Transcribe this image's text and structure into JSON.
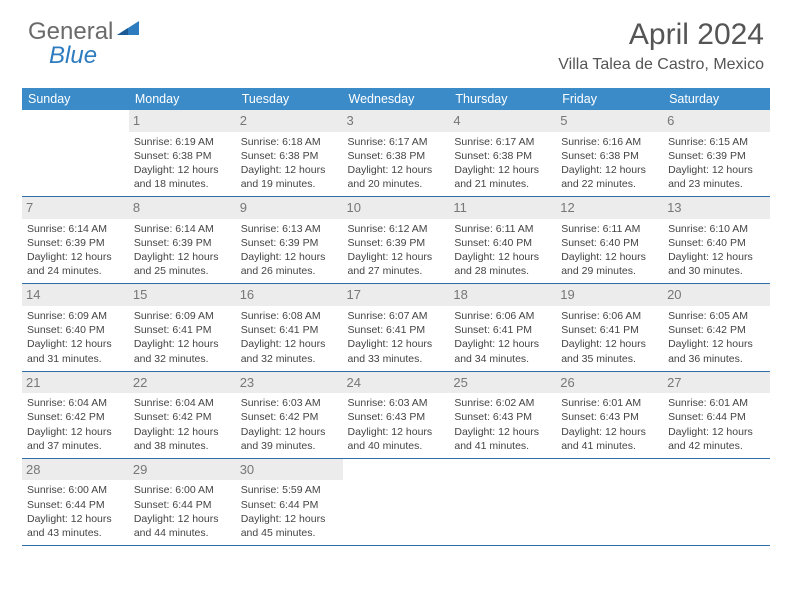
{
  "logo": {
    "part1": "General",
    "part2": "Blue"
  },
  "title": "April 2024",
  "location": "Villa Talea de Castro, Mexico",
  "colors": {
    "header_bg": "#3b8bc9",
    "row_border": "#2e6da8",
    "daynum_bg": "#ececec",
    "text": "#444444",
    "logo_gray": "#6a6a6a",
    "logo_blue": "#2e7cc0"
  },
  "weekdays": [
    "Sunday",
    "Monday",
    "Tuesday",
    "Wednesday",
    "Thursday",
    "Friday",
    "Saturday"
  ],
  "weeks": [
    [
      null,
      {
        "day": "1",
        "sunrise": "6:19 AM",
        "sunset": "6:38 PM",
        "daylight": "12 hours and 18 minutes."
      },
      {
        "day": "2",
        "sunrise": "6:18 AM",
        "sunset": "6:38 PM",
        "daylight": "12 hours and 19 minutes."
      },
      {
        "day": "3",
        "sunrise": "6:17 AM",
        "sunset": "6:38 PM",
        "daylight": "12 hours and 20 minutes."
      },
      {
        "day": "4",
        "sunrise": "6:17 AM",
        "sunset": "6:38 PM",
        "daylight": "12 hours and 21 minutes."
      },
      {
        "day": "5",
        "sunrise": "6:16 AM",
        "sunset": "6:38 PM",
        "daylight": "12 hours and 22 minutes."
      },
      {
        "day": "6",
        "sunrise": "6:15 AM",
        "sunset": "6:39 PM",
        "daylight": "12 hours and 23 minutes."
      }
    ],
    [
      {
        "day": "7",
        "sunrise": "6:14 AM",
        "sunset": "6:39 PM",
        "daylight": "12 hours and 24 minutes."
      },
      {
        "day": "8",
        "sunrise": "6:14 AM",
        "sunset": "6:39 PM",
        "daylight": "12 hours and 25 minutes."
      },
      {
        "day": "9",
        "sunrise": "6:13 AM",
        "sunset": "6:39 PM",
        "daylight": "12 hours and 26 minutes."
      },
      {
        "day": "10",
        "sunrise": "6:12 AM",
        "sunset": "6:39 PM",
        "daylight": "12 hours and 27 minutes."
      },
      {
        "day": "11",
        "sunrise": "6:11 AM",
        "sunset": "6:40 PM",
        "daylight": "12 hours and 28 minutes."
      },
      {
        "day": "12",
        "sunrise": "6:11 AM",
        "sunset": "6:40 PM",
        "daylight": "12 hours and 29 minutes."
      },
      {
        "day": "13",
        "sunrise": "6:10 AM",
        "sunset": "6:40 PM",
        "daylight": "12 hours and 30 minutes."
      }
    ],
    [
      {
        "day": "14",
        "sunrise": "6:09 AM",
        "sunset": "6:40 PM",
        "daylight": "12 hours and 31 minutes."
      },
      {
        "day": "15",
        "sunrise": "6:09 AM",
        "sunset": "6:41 PM",
        "daylight": "12 hours and 32 minutes."
      },
      {
        "day": "16",
        "sunrise": "6:08 AM",
        "sunset": "6:41 PM",
        "daylight": "12 hours and 32 minutes."
      },
      {
        "day": "17",
        "sunrise": "6:07 AM",
        "sunset": "6:41 PM",
        "daylight": "12 hours and 33 minutes."
      },
      {
        "day": "18",
        "sunrise": "6:06 AM",
        "sunset": "6:41 PM",
        "daylight": "12 hours and 34 minutes."
      },
      {
        "day": "19",
        "sunrise": "6:06 AM",
        "sunset": "6:41 PM",
        "daylight": "12 hours and 35 minutes."
      },
      {
        "day": "20",
        "sunrise": "6:05 AM",
        "sunset": "6:42 PM",
        "daylight": "12 hours and 36 minutes."
      }
    ],
    [
      {
        "day": "21",
        "sunrise": "6:04 AM",
        "sunset": "6:42 PM",
        "daylight": "12 hours and 37 minutes."
      },
      {
        "day": "22",
        "sunrise": "6:04 AM",
        "sunset": "6:42 PM",
        "daylight": "12 hours and 38 minutes."
      },
      {
        "day": "23",
        "sunrise": "6:03 AM",
        "sunset": "6:42 PM",
        "daylight": "12 hours and 39 minutes."
      },
      {
        "day": "24",
        "sunrise": "6:03 AM",
        "sunset": "6:43 PM",
        "daylight": "12 hours and 40 minutes."
      },
      {
        "day": "25",
        "sunrise": "6:02 AM",
        "sunset": "6:43 PM",
        "daylight": "12 hours and 41 minutes."
      },
      {
        "day": "26",
        "sunrise": "6:01 AM",
        "sunset": "6:43 PM",
        "daylight": "12 hours and 41 minutes."
      },
      {
        "day": "27",
        "sunrise": "6:01 AM",
        "sunset": "6:44 PM",
        "daylight": "12 hours and 42 minutes."
      }
    ],
    [
      {
        "day": "28",
        "sunrise": "6:00 AM",
        "sunset": "6:44 PM",
        "daylight": "12 hours and 43 minutes."
      },
      {
        "day": "29",
        "sunrise": "6:00 AM",
        "sunset": "6:44 PM",
        "daylight": "12 hours and 44 minutes."
      },
      {
        "day": "30",
        "sunrise": "5:59 AM",
        "sunset": "6:44 PM",
        "daylight": "12 hours and 45 minutes."
      },
      null,
      null,
      null,
      null
    ]
  ],
  "labels": {
    "sunrise": "Sunrise: ",
    "sunset": "Sunset: ",
    "daylight": "Daylight: "
  }
}
